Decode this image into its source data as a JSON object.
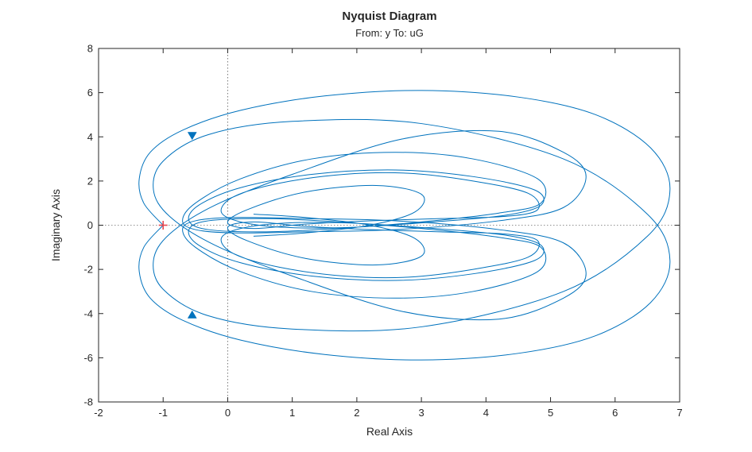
{
  "chart_data": {
    "type": "line",
    "title": "Nyquist Diagram",
    "subtitle": "From: y  To: uG",
    "xlabel": "Real Axis",
    "ylabel": "Imaginary Axis",
    "xlim": [
      -2,
      7
    ],
    "ylim": [
      -8,
      8
    ],
    "xticks": [
      "-2",
      "-1",
      "0",
      "1",
      "2",
      "3",
      "4",
      "5",
      "6",
      "7"
    ],
    "yticks": [
      "8",
      "6",
      "4",
      "2",
      "0",
      "-2",
      "-4",
      "-6",
      "-8"
    ],
    "grid": false,
    "reference_lines": [
      "x = 0",
      "y = 0"
    ],
    "critical_point": {
      "x": -1,
      "y": 0,
      "marker": "+",
      "color": "#e8474e"
    },
    "line_color": "#0072BD",
    "series": [
      {
        "branch": "positive frequency",
        "x": [
          -1.0,
          -1.3,
          -1.37,
          -1.2,
          -0.7,
          0.2,
          1.5,
          3.0,
          4.5,
          5.7,
          6.55,
          6.85,
          6.5,
          5.2,
          3.0,
          1.0,
          -0.3,
          -1.0,
          -1.15,
          -0.9,
          -0.2,
          1.0,
          2.7,
          4.2,
          5.2,
          5.55,
          5.2,
          4.2,
          2.6,
          1.2,
          0.1,
          -0.5,
          -0.7,
          -0.5,
          0.2,
          1.3,
          2.6,
          3.8,
          4.8,
          4.85,
          4.2,
          3.0,
          1.7,
          0.6,
          -0.3,
          -0.6,
          -0.45,
          0.2,
          1.3,
          2.6,
          3.8,
          4.75,
          4.85,
          4.3,
          3.2,
          1.9,
          0.9,
          0.2,
          -0.1,
          0.1,
          0.8,
          1.8,
          2.8,
          3.8,
          4.65,
          4.8,
          4.3,
          3.3,
          2.2,
          1.2,
          0.4,
          0.0,
          0.3,
          1.2,
          2.3,
          3.0,
          2.9,
          2.2,
          1.2,
          0.4
        ],
        "y": [
          0.0,
          1.0,
          2.1,
          3.3,
          4.3,
          5.2,
          5.85,
          6.1,
          5.8,
          5.0,
          3.5,
          1.6,
          -0.5,
          -3.0,
          -4.6,
          -4.7,
          -4.1,
          -2.9,
          -1.6,
          -0.4,
          0.9,
          2.3,
          3.9,
          4.25,
          3.3,
          2.2,
          0.8,
          0.2,
          -0.2,
          -0.3,
          -0.35,
          -0.2,
          0.2,
          1.0,
          2.1,
          3.0,
          3.3,
          3.0,
          2.1,
          1.0,
          0.55,
          0.15,
          -0.15,
          -0.3,
          -0.2,
          0.2,
          0.9,
          1.7,
          2.3,
          2.5,
          2.2,
          1.6,
          0.9,
          0.45,
          0.15,
          -0.1,
          -0.1,
          0.15,
          0.6,
          1.3,
          1.9,
          2.3,
          2.35,
          2.0,
          1.45,
          0.7,
          0.4,
          0.3,
          0.2,
          0.05,
          -0.15,
          0.1,
          0.7,
          1.5,
          1.8,
          1.4,
          0.6,
          0.0,
          -0.35,
          -0.5
        ]
      }
    ],
    "arrows": [
      {
        "x": -0.55,
        "y": 4.05,
        "direction": "down"
      },
      {
        "x": -0.55,
        "y": -4.05,
        "direction": "up"
      }
    ]
  }
}
